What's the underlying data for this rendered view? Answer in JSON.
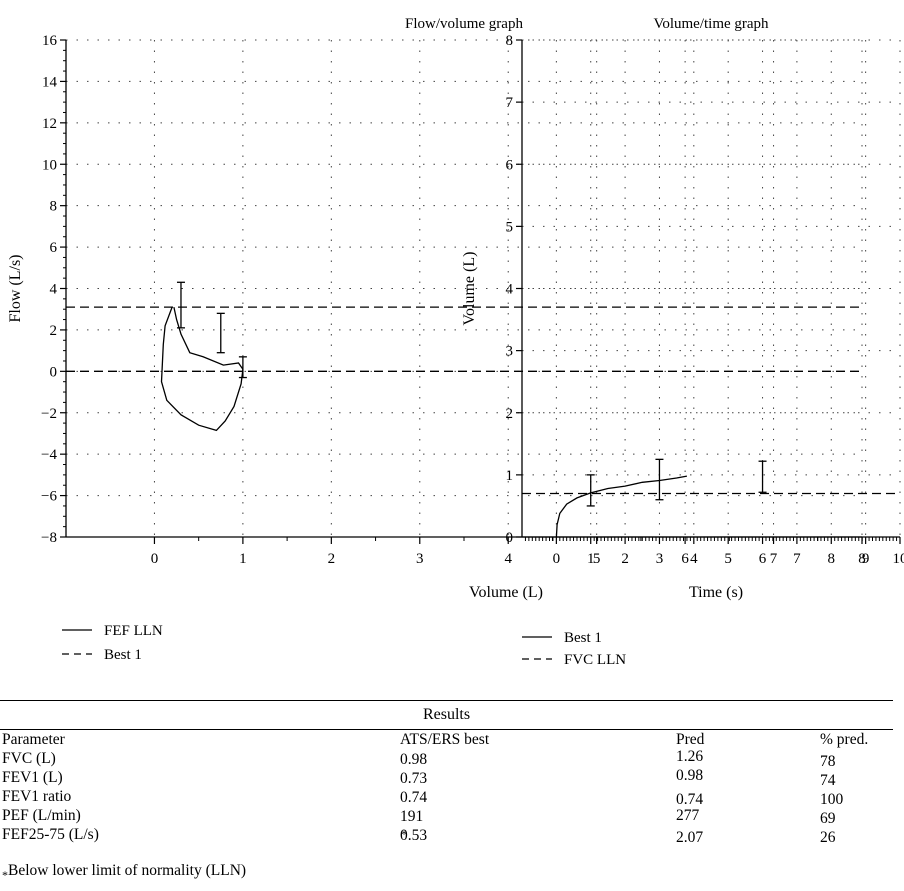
{
  "chart_data": [
    {
      "type": "line",
      "title": "Flow/volume graph",
      "xlabel": "Volume (L)",
      "ylabel": "Flow (L/s)",
      "xlim": [
        -1,
        8
      ],
      "ylim": [
        -8,
        16
      ],
      "xticks": [
        0,
        1,
        2,
        3,
        4,
        5,
        6,
        7,
        8
      ],
      "yticks": [
        -8,
        -6,
        -4,
        -2,
        0,
        2,
        4,
        6,
        8,
        10,
        12,
        14,
        16
      ],
      "ytick_labels": [
        "−8",
        "−6",
        "−4",
        "−2",
        "0",
        "2",
        "4",
        "6",
        "8",
        "10",
        "12",
        "14",
        "16"
      ],
      "grid": true,
      "legend": [
        "FEF LLN",
        "Best 1"
      ],
      "series": [
        {
          "name": "FEF LLN",
          "style": "solid",
          "points": [
            [
              0.2,
              3.1
            ],
            [
              0.12,
              2.2
            ],
            [
              0.1,
              1.3
            ],
            [
              0.08,
              -0.5
            ],
            [
              0.14,
              -1.4
            ],
            [
              0.3,
              -2.1
            ],
            [
              0.5,
              -2.6
            ],
            [
              0.7,
              -2.85
            ],
            [
              0.8,
              -2.4
            ],
            [
              0.9,
              -1.7
            ],
            [
              0.98,
              -0.6
            ],
            [
              1.0,
              0.1
            ],
            [
              0.95,
              0.4
            ],
            [
              0.78,
              0.3
            ],
            [
              0.55,
              0.7
            ],
            [
              0.4,
              0.9
            ],
            [
              0.3,
              1.8
            ],
            [
              0.25,
              2.5
            ],
            [
              0.22,
              3.1
            ]
          ]
        },
        {
          "name": "Best 1",
          "style": "dashed",
          "y_constant_lines": [
            3.1,
            0.0
          ]
        }
      ],
      "error_bars": [
        {
          "x": 0.3,
          "low": 2.1,
          "high": 4.3
        },
        {
          "x": 0.75,
          "low": 0.9,
          "high": 2.8
        },
        {
          "x": 1.0,
          "low": -0.3,
          "high": 0.7
        }
      ]
    },
    {
      "type": "line",
      "title": "Volume/time graph",
      "xlabel": "Time (s)",
      "ylabel": "Volume (L)",
      "xlim": [
        -1,
        10
      ],
      "ylim": [
        0,
        8
      ],
      "xticks": [
        0,
        1,
        2,
        3,
        4,
        5,
        6,
        7,
        8,
        9,
        10
      ],
      "yticks": [
        0,
        1,
        2,
        3,
        4,
        5,
        6,
        7,
        8
      ],
      "grid": true,
      "legend": [
        "Best 1",
        "FVC LLN"
      ],
      "series": [
        {
          "name": "Best 1",
          "style": "solid",
          "points": [
            [
              0,
              0
            ],
            [
              0.02,
              0.2
            ],
            [
              0.1,
              0.38
            ],
            [
              0.3,
              0.53
            ],
            [
              0.6,
              0.63
            ],
            [
              1.0,
              0.71
            ],
            [
              1.5,
              0.78
            ],
            [
              2.0,
              0.82
            ],
            [
              2.5,
              0.88
            ],
            [
              3.0,
              0.91
            ],
            [
              3.5,
              0.95
            ],
            [
              3.8,
              0.98
            ]
          ]
        },
        {
          "name": "FVC LLN",
          "style": "dashed",
          "y_constant": 0.7
        }
      ],
      "error_bars": [
        {
          "x": 1.0,
          "low": 0.5,
          "high": 1.0
        },
        {
          "x": 3.0,
          "low": 0.6,
          "high": 1.25
        },
        {
          "x": 6.0,
          "low": 0.72,
          "high": 1.22
        }
      ]
    }
  ],
  "results": {
    "title": "Results",
    "columns": [
      "Parameter",
      "ATS/ERS best",
      "Pred",
      "% pred."
    ],
    "rows": [
      {
        "param": "FVC (L)",
        "best": "0.98",
        "flag": "",
        "pred": "1.26",
        "pct": "78"
      },
      {
        "param": "FEV1 (L)",
        "best": "0.73",
        "flag": "",
        "pred": "0.98",
        "pct": "74"
      },
      {
        "param": "FEV1 ratio",
        "best": "0.74",
        "flag": "",
        "pred": "0.74",
        "pct": "100"
      },
      {
        "param": "PEF (L/min)",
        "best": "191",
        "flag": "",
        "pred": "277",
        "pct": "69"
      },
      {
        "param": "FEF25-75 (L/s)",
        "best": "0.53",
        "flag": "*",
        "pred": "2.07",
        "pct": "26"
      }
    ],
    "footnote_mark": "*",
    "footnote": "Below lower limit of normality (LLN)"
  }
}
